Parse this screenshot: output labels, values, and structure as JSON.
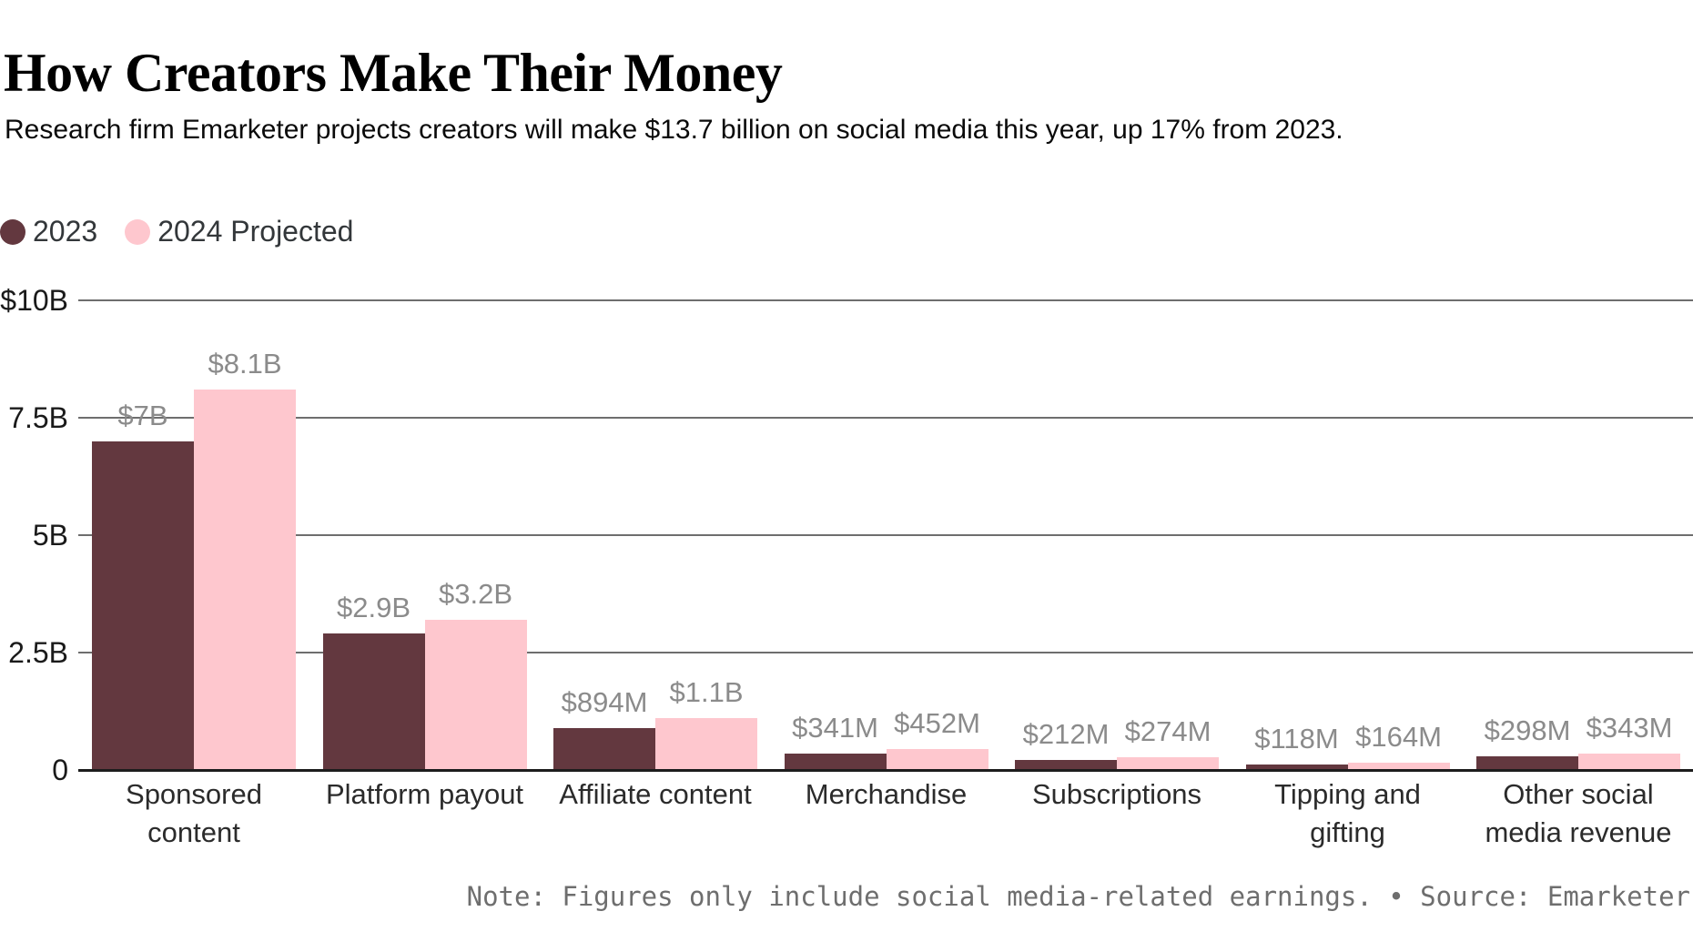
{
  "header": {
    "title": "How Creators Make Their Money",
    "subtitle": "Research firm Emarketer projects creators will make $13.7 billion on social media this year, up 17% from 2023."
  },
  "legend": [
    {
      "label": "2023",
      "color": "#63383F"
    },
    {
      "label": "2024 Projected",
      "color": "#FEC7CE"
    }
  ],
  "note": "Note: Figures only include social media-related earnings. • Source: Emarketer",
  "colors": {
    "series_2023": "#63383F",
    "series_2024": "#FEC7CE",
    "gridline": "#6e6e6e",
    "axis_line": "#1d1d1d",
    "value_label": "#8b8b8b"
  },
  "chart_data": {
    "type": "bar",
    "title": "How Creators Make Their Money",
    "categories": [
      "Sponsored content",
      "Platform payout",
      "Affiliate content",
      "Merchandise",
      "Subscriptions",
      "Tipping and gifting",
      "Other social media revenue"
    ],
    "series": [
      {
        "name": "2023",
        "color": "#63383F",
        "values": [
          7.0,
          2.9,
          0.894,
          0.341,
          0.212,
          0.118,
          0.298
        ],
        "labels": [
          "$7B",
          "$2.9B",
          "$894M",
          "$341M",
          "$212M",
          "$118M",
          "$298M"
        ]
      },
      {
        "name": "2024 Projected",
        "color": "#FEC7CE",
        "values": [
          8.1,
          3.2,
          1.1,
          0.452,
          0.274,
          0.164,
          0.343
        ],
        "labels": [
          "$8.1B",
          "$3.2B",
          "$1.1B",
          "$452M",
          "$274M",
          "$164M",
          "$343M"
        ]
      }
    ],
    "unit_scale": "billions USD",
    "y_axis": {
      "range": [
        0,
        10
      ],
      "ticks": [
        {
          "value": 10,
          "label": "$10B"
        },
        {
          "value": 7.5,
          "label": "7.5B"
        },
        {
          "value": 5,
          "label": "5B"
        },
        {
          "value": 2.5,
          "label": "2.5B"
        },
        {
          "value": 0,
          "label": "0"
        }
      ]
    },
    "grid": true,
    "legend_position": "top-left"
  }
}
